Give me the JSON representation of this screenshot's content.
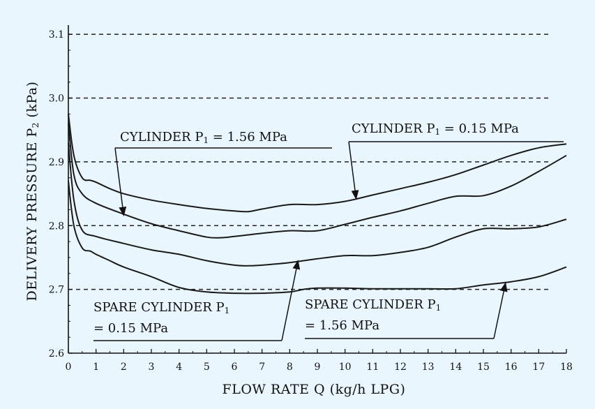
{
  "chart_data": {
    "type": "line",
    "title": "",
    "xlabel": "FLOW RATE Q (kg/h LPG)",
    "ylabel_main": "DELIVERY PRESSURE P",
    "ylabel_sub": "2",
    "ylabel_unit": " (kPa)",
    "xlim": [
      0,
      18
    ],
    "ylim": [
      2.6,
      3.1
    ],
    "xticks": [
      0,
      1,
      2,
      3,
      4,
      5,
      6,
      7,
      8,
      9,
      10,
      11,
      12,
      13,
      14,
      15,
      16,
      17,
      18
    ],
    "yticks": [
      2.6,
      2.7,
      2.8,
      2.9,
      3.0,
      3.1
    ],
    "ytick_labels": [
      "2.6",
      "2.7",
      "2.8",
      "2.9",
      "3.0",
      "3.1"
    ],
    "grid": "dashed horizontal lines at 2.7, 2.8, 2.9, 3.0, 3.1",
    "dashed_levels": [
      2.7,
      2.8,
      2.9,
      3.0,
      3.1
    ],
    "series": [
      {
        "name": "CYLINDER P1 = 0.15 MPa",
        "x": [
          0,
          0.2,
          0.5,
          0.8,
          1,
          1.5,
          2,
          3,
          4,
          5,
          6,
          6.5,
          7,
          8,
          9,
          10,
          11,
          12,
          13,
          14,
          15,
          16,
          17,
          18
        ],
        "y": [
          2.975,
          2.91,
          2.875,
          2.871,
          2.868,
          2.858,
          2.85,
          2.84,
          2.833,
          2.827,
          2.823,
          2.822,
          2.826,
          2.833,
          2.833,
          2.838,
          2.848,
          2.858,
          2.868,
          2.88,
          2.895,
          2.91,
          2.922,
          2.928
        ]
      },
      {
        "name": "CYLINDER P1 = 1.56 MPa",
        "x": [
          0,
          0.2,
          0.5,
          1,
          2,
          3,
          4,
          5,
          5.5,
          6,
          7,
          8,
          9,
          10,
          11,
          12,
          13,
          14,
          15,
          16,
          17,
          18
        ],
        "y": [
          2.96,
          2.88,
          2.85,
          2.835,
          2.818,
          2.803,
          2.792,
          2.782,
          2.781,
          2.783,
          2.788,
          2.792,
          2.792,
          2.802,
          2.813,
          2.823,
          2.835,
          2.846,
          2.847,
          2.862,
          2.885,
          2.91
        ]
      },
      {
        "name": "SPARE CYLINDER P1 = 1.56 MPa",
        "x": [
          0,
          0.2,
          0.5,
          1,
          2,
          3,
          4,
          5,
          6,
          6.5,
          7,
          8,
          9,
          10,
          11,
          12,
          13,
          14,
          15,
          16,
          17,
          18
        ],
        "y": [
          2.93,
          2.84,
          2.793,
          2.783,
          2.772,
          2.762,
          2.755,
          2.745,
          2.738,
          2.737,
          2.738,
          2.742,
          2.748,
          2.753,
          2.753,
          2.758,
          2.766,
          2.782,
          2.795,
          2.795,
          2.798,
          2.81
        ]
      },
      {
        "name": "SPARE CYLINDER P1 = 0.15 MPa",
        "x": [
          0,
          0.2,
          0.5,
          0.8,
          1,
          1.5,
          2,
          3,
          4,
          5,
          6,
          7,
          8,
          8.5,
          9,
          10,
          11,
          12,
          13,
          14,
          15,
          16,
          17,
          18
        ],
        "y": [
          2.87,
          2.8,
          2.765,
          2.76,
          2.755,
          2.745,
          2.735,
          2.72,
          2.703,
          2.696,
          2.694,
          2.694,
          2.696,
          2.7,
          2.702,
          2.702,
          2.701,
          2.701,
          2.701,
          2.701,
          2.707,
          2.712,
          2.72,
          2.735
        ]
      }
    ],
    "annotations": [
      {
        "line1": "CYLINDER P",
        "sub": "1",
        "line1_end": " = 1.56 MPa",
        "line2": "",
        "arrow_to": [
          2,
          2.816
        ]
      },
      {
        "line1": "CYLINDER P",
        "sub": "1",
        "line1_end": " = 0.15 MPa",
        "line2": "",
        "arrow_to": [
          10.4,
          2.842
        ]
      },
      {
        "line1": "SPARE CYLINDER P",
        "sub": "1",
        "line1_end": "",
        "line2": "= 0.15 MPa",
        "arrow_to": [
          8.3,
          2.745
        ]
      },
      {
        "line1": "SPARE CYLINDER P",
        "sub": "1",
        "line1_end": "",
        "line2": "= 1.56 MPa",
        "arrow_to": [
          15.8,
          2.71
        ]
      }
    ]
  }
}
